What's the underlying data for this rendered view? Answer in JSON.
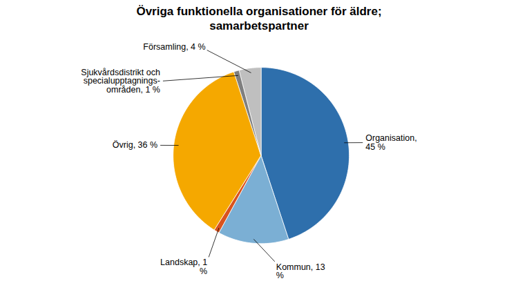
{
  "chart_data": {
    "type": "pie",
    "title": "Övriga funktionella organisationer för äldre;\nsamarbetspartner",
    "categories": [
      "Organisation,\n45 %",
      "Kommun, 13\n%",
      "Landskap, 1\n%",
      "Övrig, 36 %",
      "Sjukvårdsdistrikt och\nspecialupptagnings-\nområden, 1 %",
      "Församling, 4 %"
    ],
    "values": [
      45,
      13,
      1,
      36,
      1,
      4
    ],
    "colors": [
      "#2E6FAC",
      "#7BAFD4",
      "#D9531E",
      "#F5A800",
      "#7F7F7F",
      "#BFBFBF"
    ]
  }
}
